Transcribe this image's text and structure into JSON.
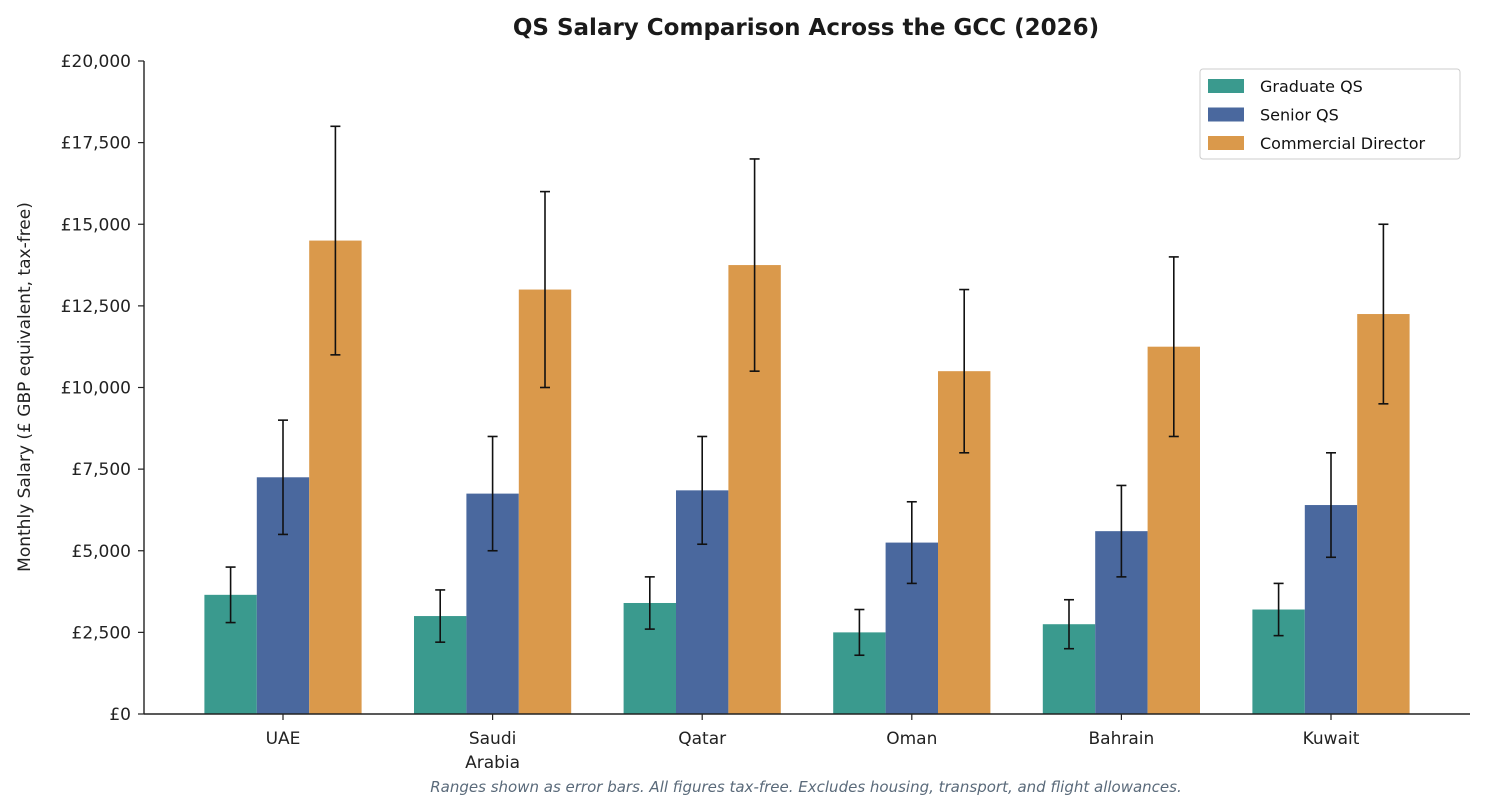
{
  "chart_data": {
    "type": "bar",
    "title": "QS Salary Comparison Across the GCC (2026)",
    "ylabel": "Monthly Salary (£ GBP equivalent, tax-free)",
    "xlabel": "",
    "categories": [
      [
        "UAE"
      ],
      [
        "Saudi",
        "Arabia"
      ],
      [
        "Qatar"
      ],
      [
        "Oman"
      ],
      [
        "Bahrain"
      ],
      [
        "Kuwait"
      ]
    ],
    "ylim": [
      0,
      20000
    ],
    "yticks": [
      0,
      2500,
      5000,
      7500,
      10000,
      12500,
      15000,
      17500,
      20000
    ],
    "ytick_labels": [
      "£0",
      "£2,500",
      "£5,000",
      "£7,500",
      "£10,000",
      "£12,500",
      "£15,000",
      "£17,500",
      "£20,000"
    ],
    "grid": false,
    "legend_position": "top-right",
    "series": [
      {
        "name": "Graduate QS",
        "color": "#3a9a8e",
        "values": [
          3650,
          3000,
          3400,
          2500,
          2750,
          3200
        ],
        "low": [
          2800,
          2200,
          2600,
          1800,
          2000,
          2400
        ],
        "high": [
          4500,
          3800,
          4200,
          3200,
          3500,
          4000
        ]
      },
      {
        "name": "Senior QS",
        "color": "#4a689e",
        "values": [
          7250,
          6750,
          6850,
          5250,
          5600,
          6400
        ],
        "low": [
          5500,
          5000,
          5200,
          4000,
          4200,
          4800
        ],
        "high": [
          9000,
          8500,
          8500,
          6500,
          7000,
          8000
        ]
      },
      {
        "name": "Commercial Director",
        "color": "#da994b",
        "values": [
          14500,
          13000,
          13750,
          10500,
          11250,
          12250
        ],
        "low": [
          11000,
          10000,
          10500,
          8000,
          8500,
          9500
        ],
        "high": [
          18000,
          16000,
          17000,
          13000,
          14000,
          15000
        ]
      }
    ],
    "footnote": "Ranges shown as error bars. All figures tax-free. Excludes housing, transport, and flight allowances."
  }
}
